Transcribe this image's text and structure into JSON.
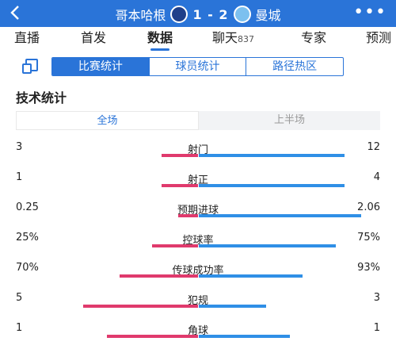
{
  "header": {
    "back_icon": "chevron-left-icon",
    "home_team": "哥本哈根",
    "score": "1 - 2",
    "away_team": "曼城",
    "more_label": "•••"
  },
  "tabs": [
    {
      "label": "直播"
    },
    {
      "label": "首发"
    },
    {
      "label": "数据"
    },
    {
      "label": "聊天",
      "count": "837"
    },
    {
      "label": "专家"
    },
    {
      "label": "预测"
    }
  ],
  "subtabs": [
    "比赛统计",
    "球员统计",
    "路径热区"
  ],
  "section_title": "技术统计",
  "periods": [
    "全场",
    "上半场"
  ],
  "stats": [
    {
      "name": "射门",
      "left": "3",
      "right": "12",
      "left_frac": 0.2,
      "right_frac": 0.8
    },
    {
      "name": "射正",
      "left": "1",
      "right": "4",
      "left_frac": 0.2,
      "right_frac": 0.8
    },
    {
      "name": "预期进球",
      "left": "0.25",
      "right": "2.06",
      "left_frac": 0.11,
      "right_frac": 0.89
    },
    {
      "name": "控球率",
      "left": "25%",
      "right": "75%",
      "left_frac": 0.25,
      "right_frac": 0.75
    },
    {
      "name": "传球成功率",
      "left": "70%",
      "right": "93%",
      "left_frac": 0.43,
      "right_frac": 0.57
    },
    {
      "name": "犯规",
      "left": "5",
      "right": "3",
      "left_frac": 0.63,
      "right_frac": 0.37
    },
    {
      "name": "角球",
      "left": "1",
      "right": "1",
      "left_frac": 0.5,
      "right_frac": 0.5
    }
  ]
}
